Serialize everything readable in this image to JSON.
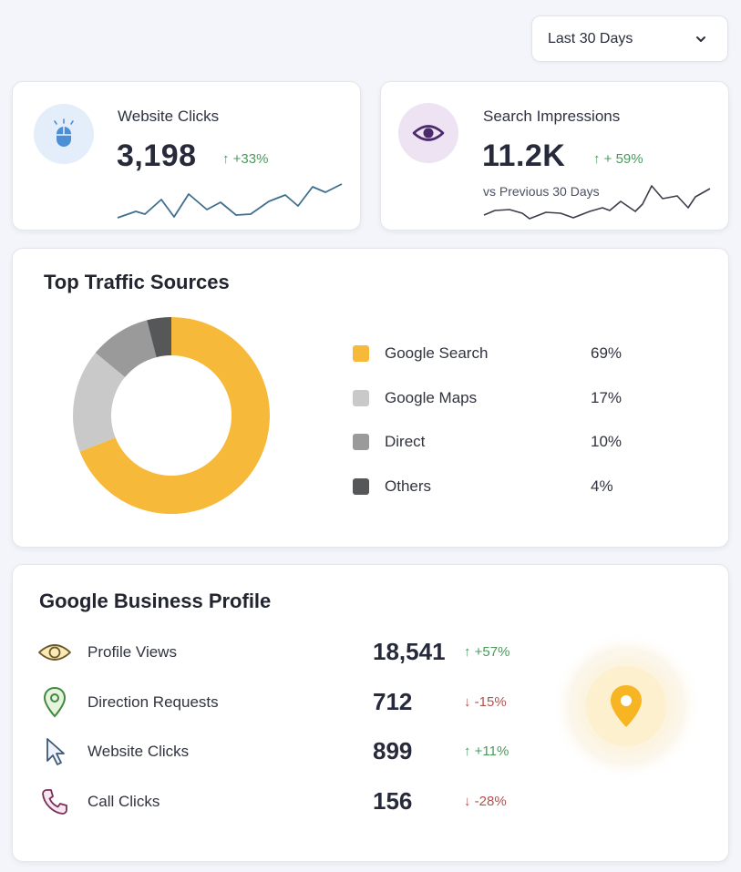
{
  "filter": {
    "selected": "Last 30 Days"
  },
  "kpis": {
    "clicks": {
      "title": "Website Clicks",
      "value": "3,198",
      "delta": "↑ +33%",
      "icon": "mouse-icon"
    },
    "impressions": {
      "title": "Search Impressions",
      "value": "11.2K",
      "delta": "↑ + 59%",
      "sub": "vs Previous 30 Days",
      "icon": "eye-icon"
    }
  },
  "traffic": {
    "title": "Top Traffic Sources",
    "sources": [
      {
        "label": "Google Search",
        "pct": "69%",
        "color": "#f7b93a"
      },
      {
        "label": "Google Maps",
        "pct": "17%",
        "color": "#c9c9c9"
      },
      {
        "label": "Direct",
        "pct": "10%",
        "color": "#9a9a9a"
      },
      {
        "label": "Others",
        "pct": "4%",
        "color": "#555759"
      }
    ]
  },
  "chart_data": {
    "type": "pie",
    "title": "Top Traffic Sources",
    "categories": [
      "Google Search",
      "Google Maps",
      "Direct",
      "Others"
    ],
    "values": [
      69,
      17,
      10,
      4
    ],
    "colors": [
      "#f7b93a",
      "#c9c9c9",
      "#9a9a9a",
      "#555759"
    ],
    "legend": "right"
  },
  "gbp": {
    "title": "Google Business Profile",
    "rows": [
      {
        "label": "Profile Views",
        "value": "18,541",
        "delta": "↑ +57%",
        "dir": "up",
        "icon": "eye-icon"
      },
      {
        "label": "Direction Requests",
        "value": "712",
        "delta": "↓ -15%",
        "dir": "down",
        "icon": "location-pin-icon"
      },
      {
        "label": "Website Clicks",
        "value": "899",
        "delta": "↑ +11%",
        "dir": "up",
        "icon": "cursor-icon"
      },
      {
        "label": "Call Clicks",
        "value": "156",
        "delta": "↓ -28%",
        "dir": "down",
        "icon": "phone-icon"
      }
    ],
    "badge_icon": "map-pin-icon"
  }
}
